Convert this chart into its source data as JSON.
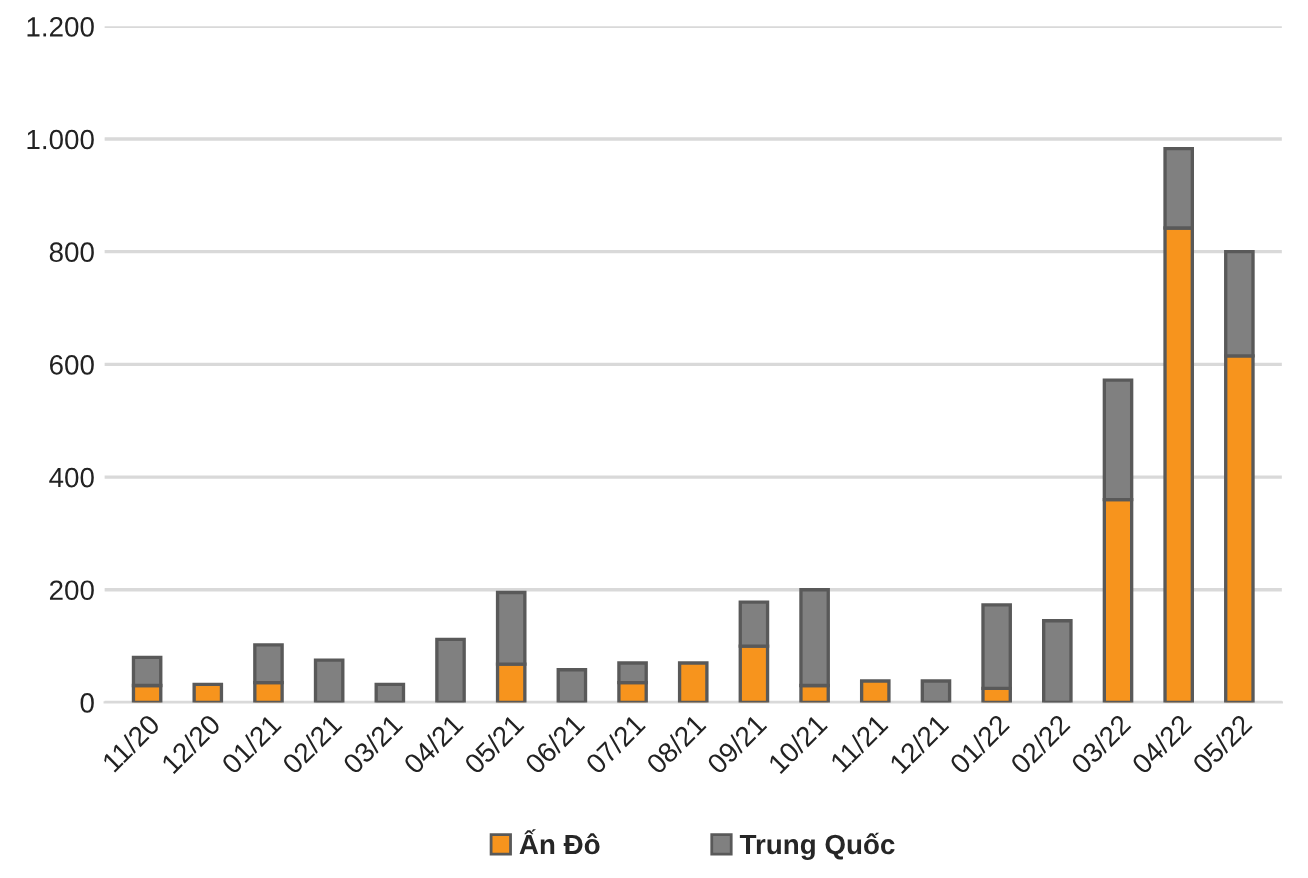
{
  "chart_data": {
    "type": "bar",
    "stacked": true,
    "categories": [
      "11/20",
      "12/20",
      "01/21",
      "02/21",
      "03/21",
      "04/21",
      "05/21",
      "06/21",
      "07/21",
      "08/21",
      "09/21",
      "10/21",
      "11/21",
      "12/21",
      "01/22",
      "02/22",
      "03/22",
      "04/22",
      "05/22"
    ],
    "series": [
      {
        "name": "Ấn Đô",
        "color": "#f7941d",
        "values": [
          30,
          32,
          35,
          0,
          0,
          0,
          68,
          0,
          35,
          70,
          100,
          30,
          38,
          0,
          25,
          0,
          360,
          842,
          615
        ]
      },
      {
        "name": "Trung Quốc",
        "color": "#808080",
        "values": [
          50,
          0,
          67,
          75,
          32,
          112,
          127,
          58,
          35,
          0,
          78,
          170,
          0,
          38,
          148,
          145,
          212,
          141,
          185
        ]
      }
    ],
    "ylim": [
      0,
      1200
    ],
    "yticks": [
      {
        "value": 0,
        "label": "0"
      },
      {
        "value": 200,
        "label": "200"
      },
      {
        "value": 400,
        "label": "400"
      },
      {
        "value": 600,
        "label": "600"
      },
      {
        "value": 800,
        "label": "800"
      },
      {
        "value": 1000,
        "label": "1.000"
      },
      {
        "value": 1200,
        "label": "1.200"
      }
    ],
    "grid": "y",
    "legend": "bottom"
  }
}
